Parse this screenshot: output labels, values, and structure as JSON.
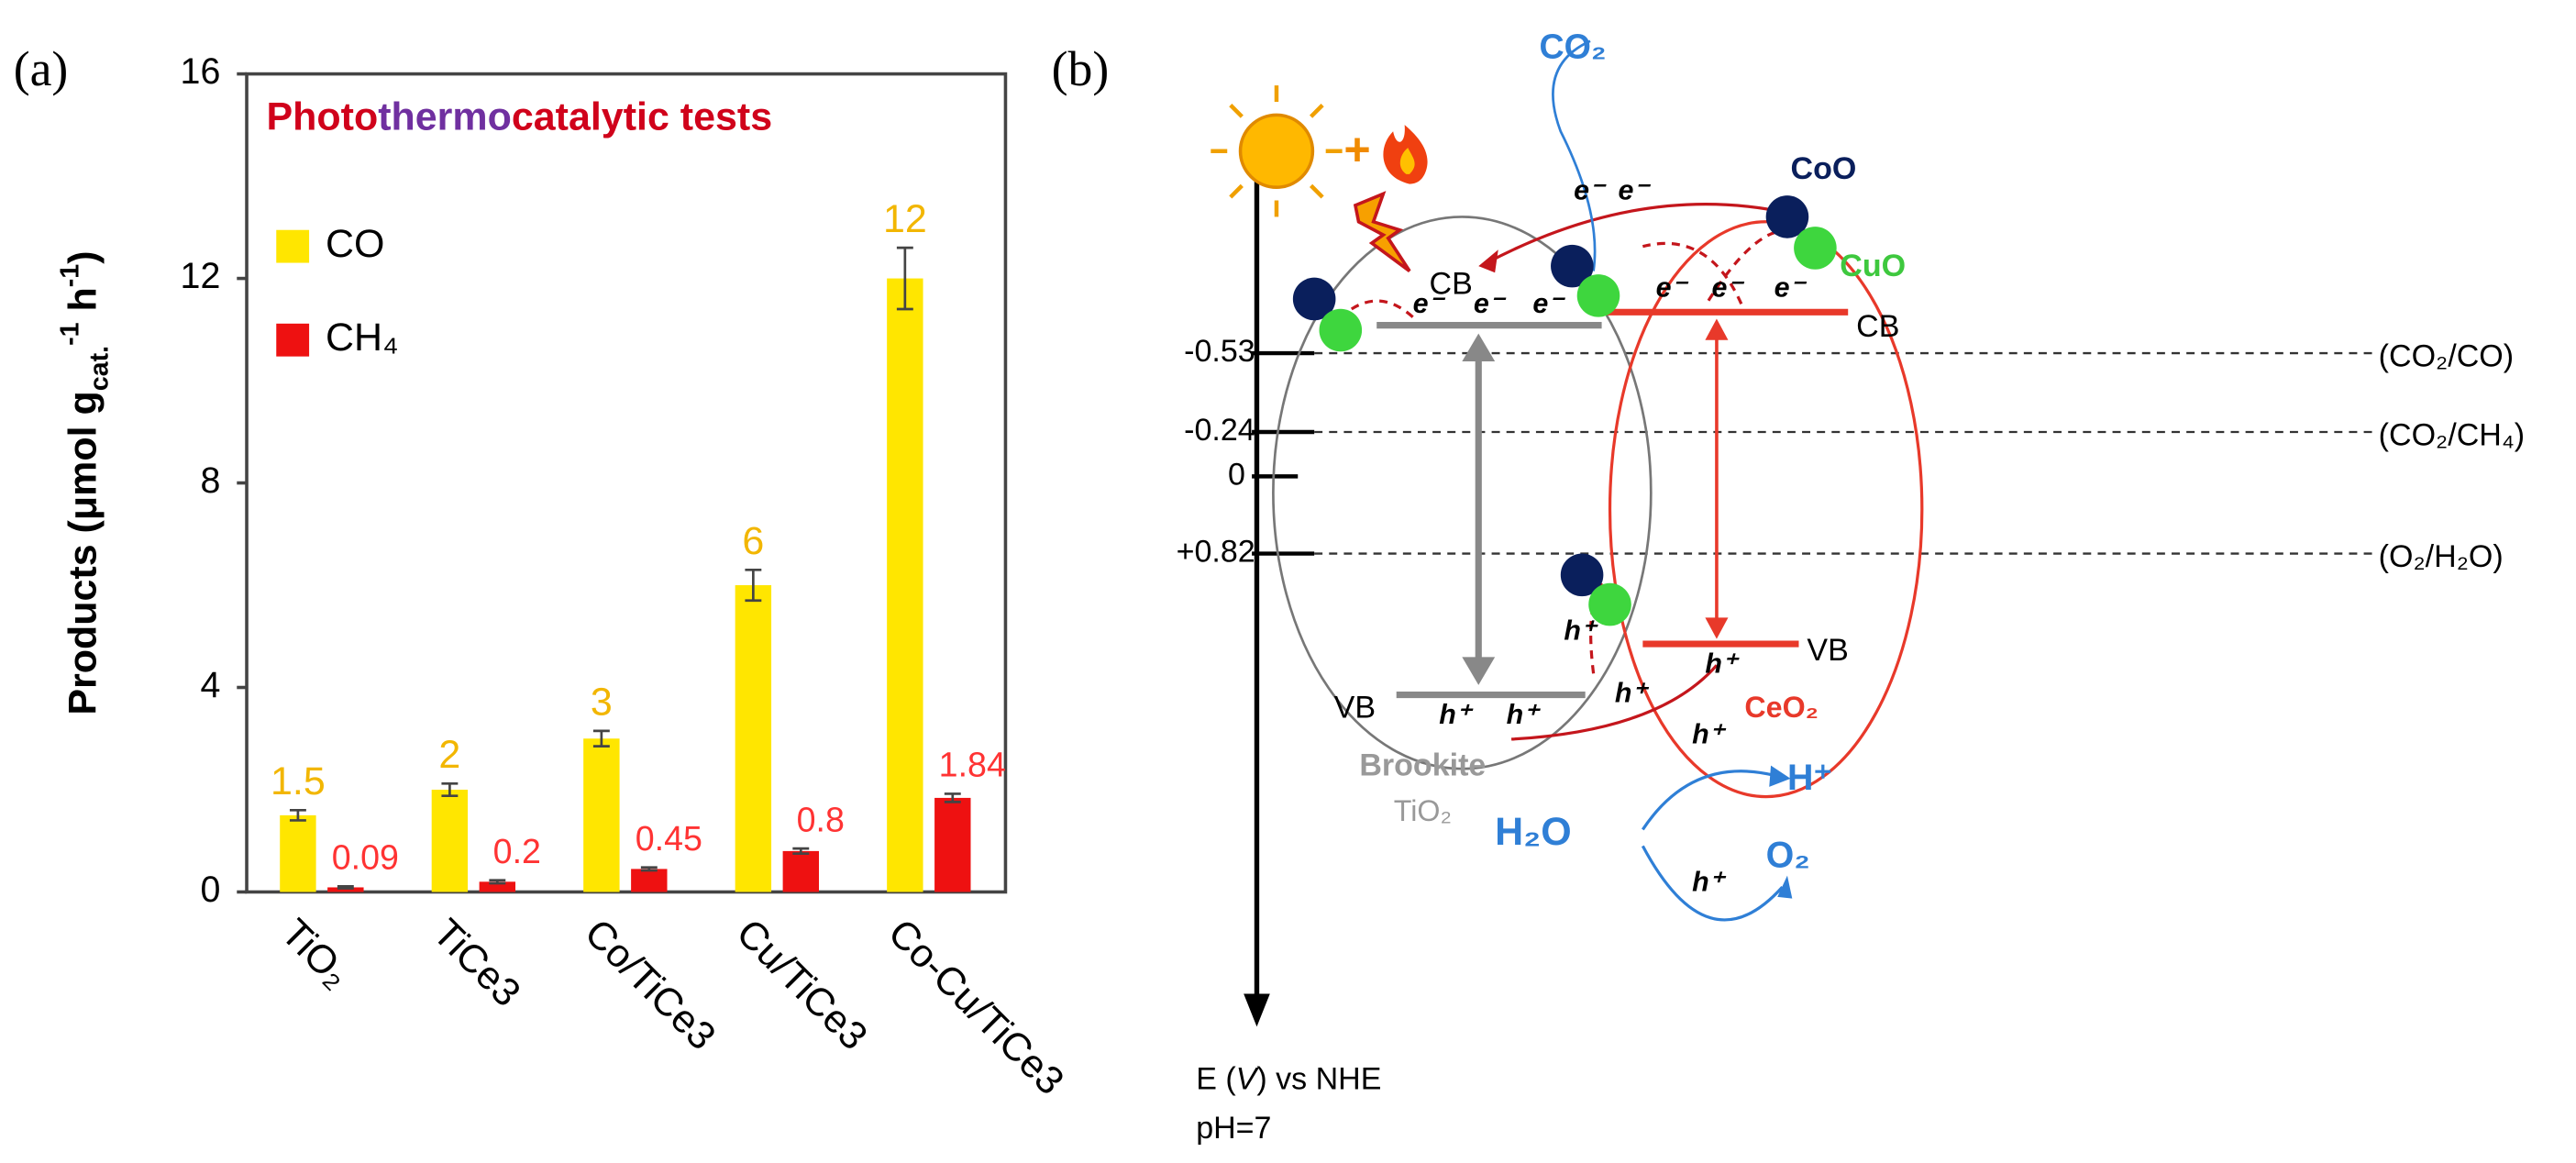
{
  "panel_labels": [
    "(a)",
    "(b)"
  ],
  "chart_data": {
    "type": "bar",
    "title": [
      {
        "text": "Photo",
        "color": "#d0021b"
      },
      {
        "text": "thermo",
        "color": "#7030a0"
      },
      {
        "text": "catalytic tests",
        "color": "#d0021b"
      }
    ],
    "ylabel": [
      "Products (μmol g",
      "cat.",
      "-1",
      " h",
      "-1",
      ")"
    ],
    "categories": [
      "TiO₂",
      "TiCe3",
      "Co/TiCe3",
      "Cu/TiCe3",
      "Co-Cu/TiCe3"
    ],
    "series": [
      {
        "name": "CO",
        "color": "#ffe600",
        "label_color": "#f2b600",
        "values": [
          1.5,
          2,
          3,
          6,
          12
        ],
        "errors": [
          0.1,
          0.12,
          0.15,
          0.3,
          0.6
        ]
      },
      {
        "name": "CH₄",
        "color": "#ee1111",
        "label_color": "#ff3333",
        "values": [
          0.09,
          0.2,
          0.45,
          0.8,
          1.84
        ],
        "errors": [
          0.02,
          0.03,
          0.03,
          0.05,
          0.08
        ]
      }
    ],
    "ylim": [
      0,
      16
    ],
    "yticks": [
      0,
      4,
      8,
      12,
      16
    ],
    "grid": false,
    "legend": "upper left"
  },
  "diagram": {
    "electron": "e⁻",
    "hole": "h⁺",
    "plus": "+",
    "co2_in": "CO₂",
    "coo": "CoO",
    "cuo": "CuO",
    "cb": "CB",
    "vb": "VB",
    "levels": [
      {
        "value": "-0.53",
        "couple": "(CO₂/CO)"
      },
      {
        "value": "-0.24",
        "couple": "(CO₂/CH₄)"
      },
      {
        "value": "0"
      },
      {
        "value": "+0.82",
        "couple": "(O₂/H₂O)"
      }
    ],
    "tio2_name": [
      "Brookite",
      "TiO₂"
    ],
    "ceo2_name": "CeO₂",
    "h2o": "H₂O",
    "h_plus": "H⁺",
    "o2": "O₂",
    "axis_label": [
      "E (",
      "V",
      ") vs NHE"
    ],
    "ph": "pH=7"
  }
}
